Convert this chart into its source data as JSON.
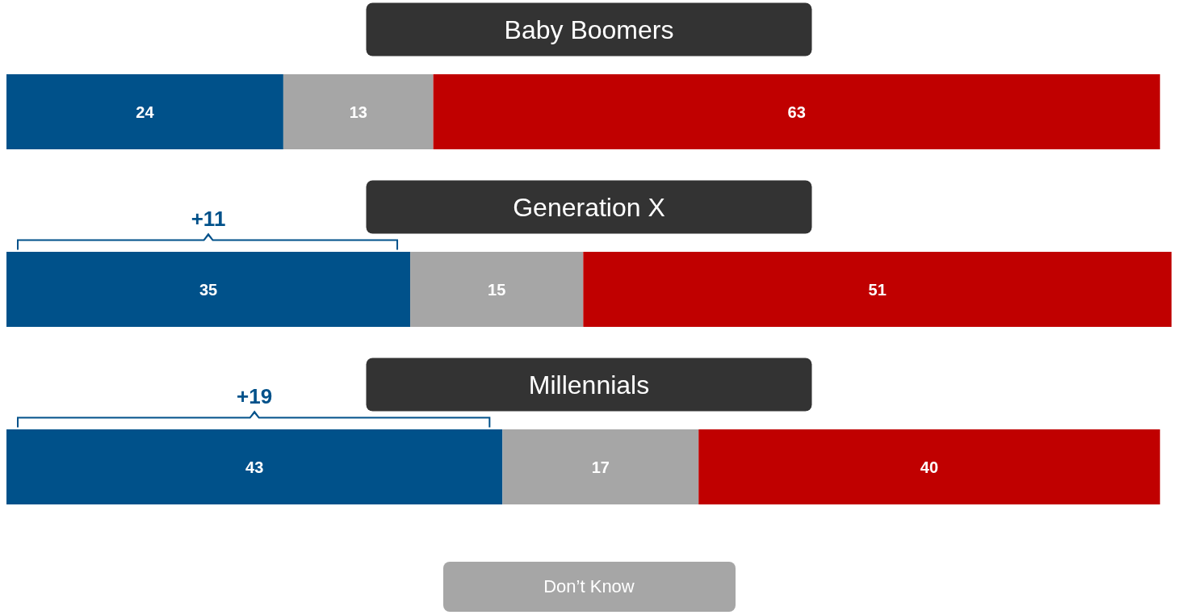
{
  "chart_data": {
    "type": "bar",
    "orientation": "horizontal",
    "stacked": true,
    "categories": [
      "Baby Boomers",
      "Generation X",
      "Millennials"
    ],
    "series": [
      {
        "color": "#00518a",
        "values": [
          24,
          35,
          43
        ]
      },
      {
        "name": "Don’t Know",
        "color": "#a6a6a6",
        "values": [
          13,
          15,
          17
        ]
      },
      {
        "color": "#c00000",
        "values": [
          63,
          51,
          40
        ]
      }
    ],
    "xlim": [
      0,
      101
    ],
    "tick_labels": "y",
    "data_labels": true,
    "legend": "bottom",
    "annotations": [
      "+11",
      "+19"
    ]
  }
}
